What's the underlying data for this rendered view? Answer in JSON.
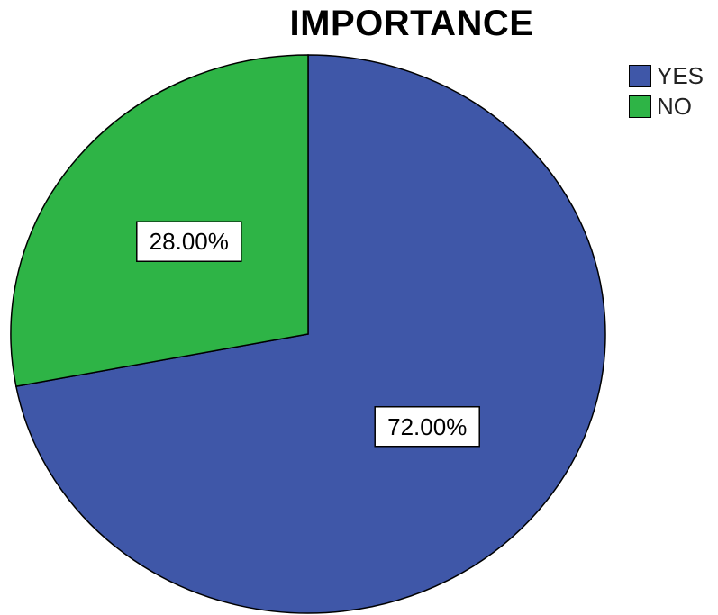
{
  "chart_data": {
    "type": "pie",
    "title": "IMPORTANCE",
    "categories": [
      "YES",
      "NO"
    ],
    "values": [
      72.0,
      28.0
    ],
    "labels": [
      "72.00%",
      "28.00%"
    ],
    "colors": [
      "#3f57a8",
      "#2eb446"
    ],
    "legend": "top-right",
    "start_angle": "12 o'clock",
    "direction": "clockwise"
  }
}
